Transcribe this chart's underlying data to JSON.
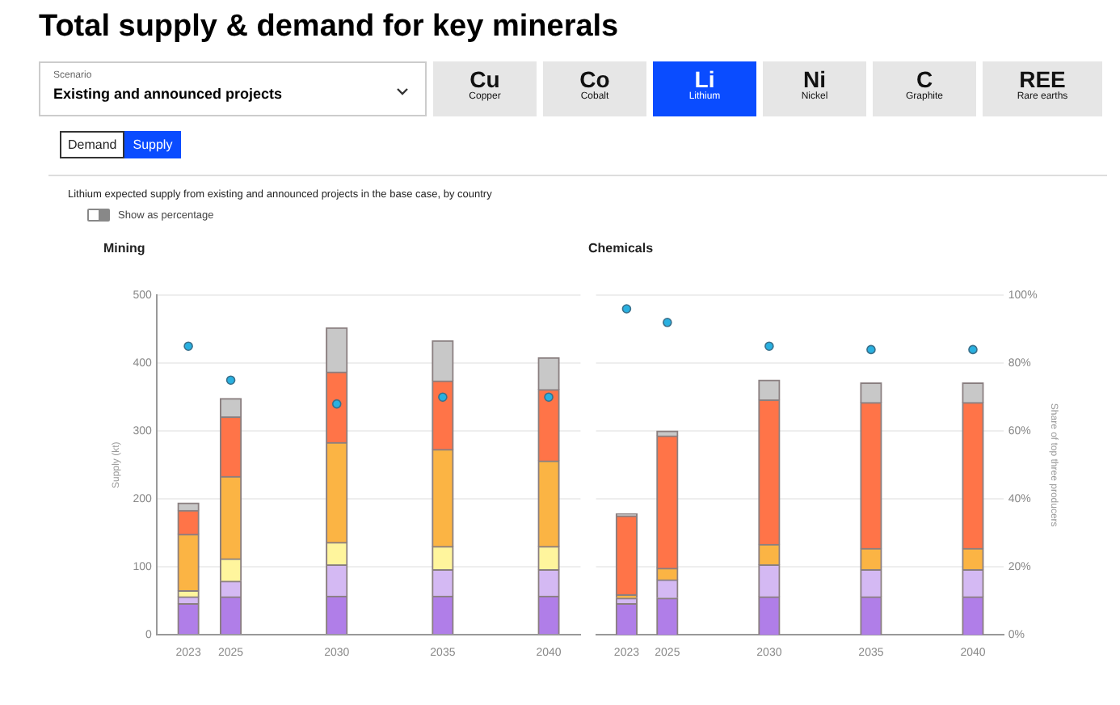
{
  "chart_data": [
    {
      "type": "other",
      "title": "Total supply & demand for key minerals",
      "subtitle": "Lithium expected supply from existing and announced projects in the base case, by country",
      "annotations": [
        "Scenario",
        "Existing and announced projects",
        "Cu",
        "Copper",
        "Co",
        "Cobalt",
        "Li",
        "Lithium",
        "Ni",
        "Nickel",
        "C",
        "Graphite",
        "REE",
        "Rare earths",
        "Demand",
        "Supply",
        "Show as percentage"
      ]
    },
    {
      "type": "bar",
      "title": "Mining",
      "ylabel": "Supply (kt)",
      "stacked": true,
      "x": [
        2023,
        2025,
        2030,
        2035,
        2040
      ],
      "xlim": [
        2021.5,
        2041.5
      ],
      "xticks": [
        2023,
        2025,
        2030,
        2035,
        2040
      ],
      "ylim": [
        0,
        500
      ],
      "yticks": [
        0,
        100,
        200,
        300,
        400,
        500
      ],
      "y2lim": [
        0,
        100
      ],
      "grid": "y",
      "legend": false,
      "series": [
        {
          "color": "#b07ee8",
          "values": [
            46,
            56,
            57,
            57,
            57
          ]
        },
        {
          "color": "#d4b9f3",
          "values": [
            10,
            23,
            46,
            39,
            39
          ]
        },
        {
          "color": "#fff59d",
          "values": [
            9,
            33,
            33,
            34,
            34
          ]
        },
        {
          "color": "#fbb444",
          "values": [
            83,
            121,
            147,
            143,
            126
          ]
        },
        {
          "color": "#ff7448",
          "values": [
            35,
            88,
            104,
            101,
            105
          ]
        },
        {
          "color": "#c8c8c8",
          "values": [
            11,
            27,
            65,
            59,
            47
          ]
        },
        {
          "type": "scatter",
          "axis": "y2",
          "color": "#29b0e0",
          "values": [
            85,
            75,
            68,
            70,
            70
          ]
        }
      ]
    },
    {
      "type": "bar",
      "title": "Chemicals",
      "y2label": "Share of top three producers",
      "stacked": true,
      "x": [
        2023,
        2025,
        2030,
        2035,
        2040
      ],
      "xlim": [
        2021.5,
        2041.5
      ],
      "xticks": [
        2023,
        2025,
        2030,
        2035,
        2040
      ],
      "ylim": [
        0,
        500
      ],
      "y2lim": [
        0,
        100
      ],
      "y2ticks": [
        {
          "value": 0,
          "label": "0%"
        },
        {
          "value": 20,
          "label": "20%"
        },
        {
          "value": 40,
          "label": "40%"
        },
        {
          "value": 60,
          "label": "60%"
        },
        {
          "value": 80,
          "label": "80%"
        },
        {
          "value": 100,
          "label": "100%"
        }
      ],
      "grid": "y",
      "legend": false,
      "series": [
        {
          "color": "#b07ee8",
          "values": [
            46,
            54,
            56,
            56,
            56
          ]
        },
        {
          "color": "#d4b9f3",
          "values": [
            8,
            27,
            47,
            40,
            40
          ]
        },
        {
          "color": "#fbb444",
          "values": [
            5,
            17,
            30,
            31,
            31
          ]
        },
        {
          "color": "#ff7448",
          "values": [
            116,
            195,
            213,
            215,
            215
          ]
        },
        {
          "color": "#c8c8c8",
          "values": [
            3,
            7,
            29,
            29,
            29
          ]
        },
        {
          "type": "scatter",
          "axis": "y2",
          "color": "#29b0e0",
          "values": [
            96,
            92,
            85,
            84,
            84
          ]
        }
      ]
    }
  ]
}
